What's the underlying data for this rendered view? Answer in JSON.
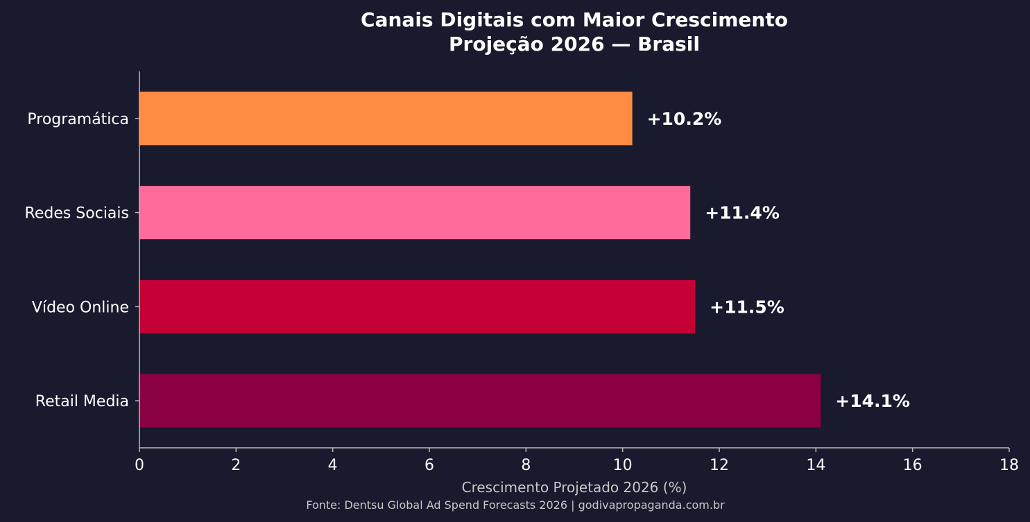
{
  "chart_data": {
    "type": "bar",
    "orientation": "horizontal",
    "title_lines": [
      "Canais Digitais com Maior Crescimento",
      "Projeção 2026 — Brasil"
    ],
    "categories": [
      "Retail Media",
      "Vídeo Online",
      "Redes Sociais",
      "Programática"
    ],
    "values": [
      14.1,
      11.5,
      11.4,
      10.2
    ],
    "value_labels": [
      "+14.1%",
      "+11.5%",
      "+11.4%",
      "+10.2%"
    ],
    "colors": [
      "#8b0042",
      "#c40036",
      "#ff6b9a",
      "#ff8c42"
    ],
    "xlabel": "Crescimento Projetado 2026 (%)",
    "ylabel": "",
    "xlim": [
      0,
      18
    ],
    "xticks": [
      0,
      2,
      4,
      6,
      8,
      10,
      12,
      14,
      16,
      18
    ],
    "grid": false,
    "legend": "none"
  },
  "source": "Fonte: Dentsu Global Ad Spend Forecasts 2026 | godivapropaganda.com.br",
  "colors": {
    "background": "#1a1a2e",
    "axis": "#bbbbbb",
    "text": "#ffffff",
    "muted_text": "#c8c8c8"
  }
}
